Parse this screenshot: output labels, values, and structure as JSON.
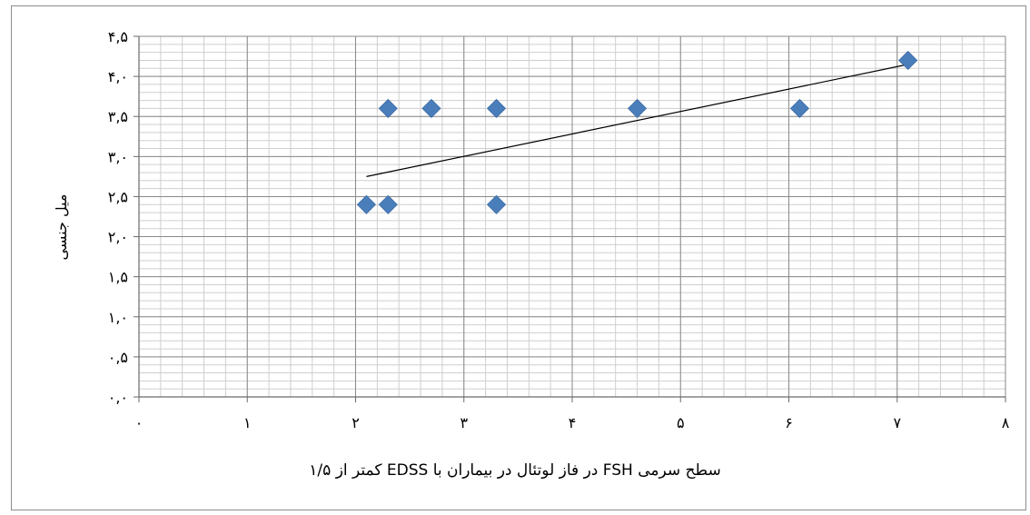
{
  "chart_data": {
    "type": "scatter",
    "title": "",
    "xlabel": "سطح سرمی FSH در فاز لوتئال در بیماران با EDSS کمتر از ۱/۵",
    "ylabel": "میل جنسی",
    "xlim": [
      0,
      8
    ],
    "ylim": [
      0,
      4.5
    ],
    "x_tick_labels": [
      "۰",
      "۱",
      "۲",
      "۳",
      "۴",
      "۵",
      "۶",
      "۷",
      "۸"
    ],
    "y_tick_labels": [
      "۰,۰",
      "۰,۵",
      "۱,۰",
      "۱,۵",
      "۲,۰",
      "۲,۵",
      "۳,۰",
      "۳,۵",
      "۴,۰",
      "۴,۵"
    ],
    "grid": true,
    "legend": "none",
    "marker": "diamond",
    "marker_color": "#4a7ebb",
    "trendline_color": "#000000",
    "points": [
      {
        "x": 2.1,
        "y": 2.4
      },
      {
        "x": 2.3,
        "y": 2.4
      },
      {
        "x": 3.3,
        "y": 2.4
      },
      {
        "x": 2.3,
        "y": 3.6
      },
      {
        "x": 2.7,
        "y": 3.6
      },
      {
        "x": 3.3,
        "y": 3.6
      },
      {
        "x": 4.6,
        "y": 3.6
      },
      {
        "x": 6.1,
        "y": 3.6
      },
      {
        "x": 7.1,
        "y": 4.2
      }
    ],
    "trendline": {
      "x_start": 2.1,
      "y_start": 2.75,
      "x_end": 7.1,
      "y_end": 4.15
    }
  }
}
